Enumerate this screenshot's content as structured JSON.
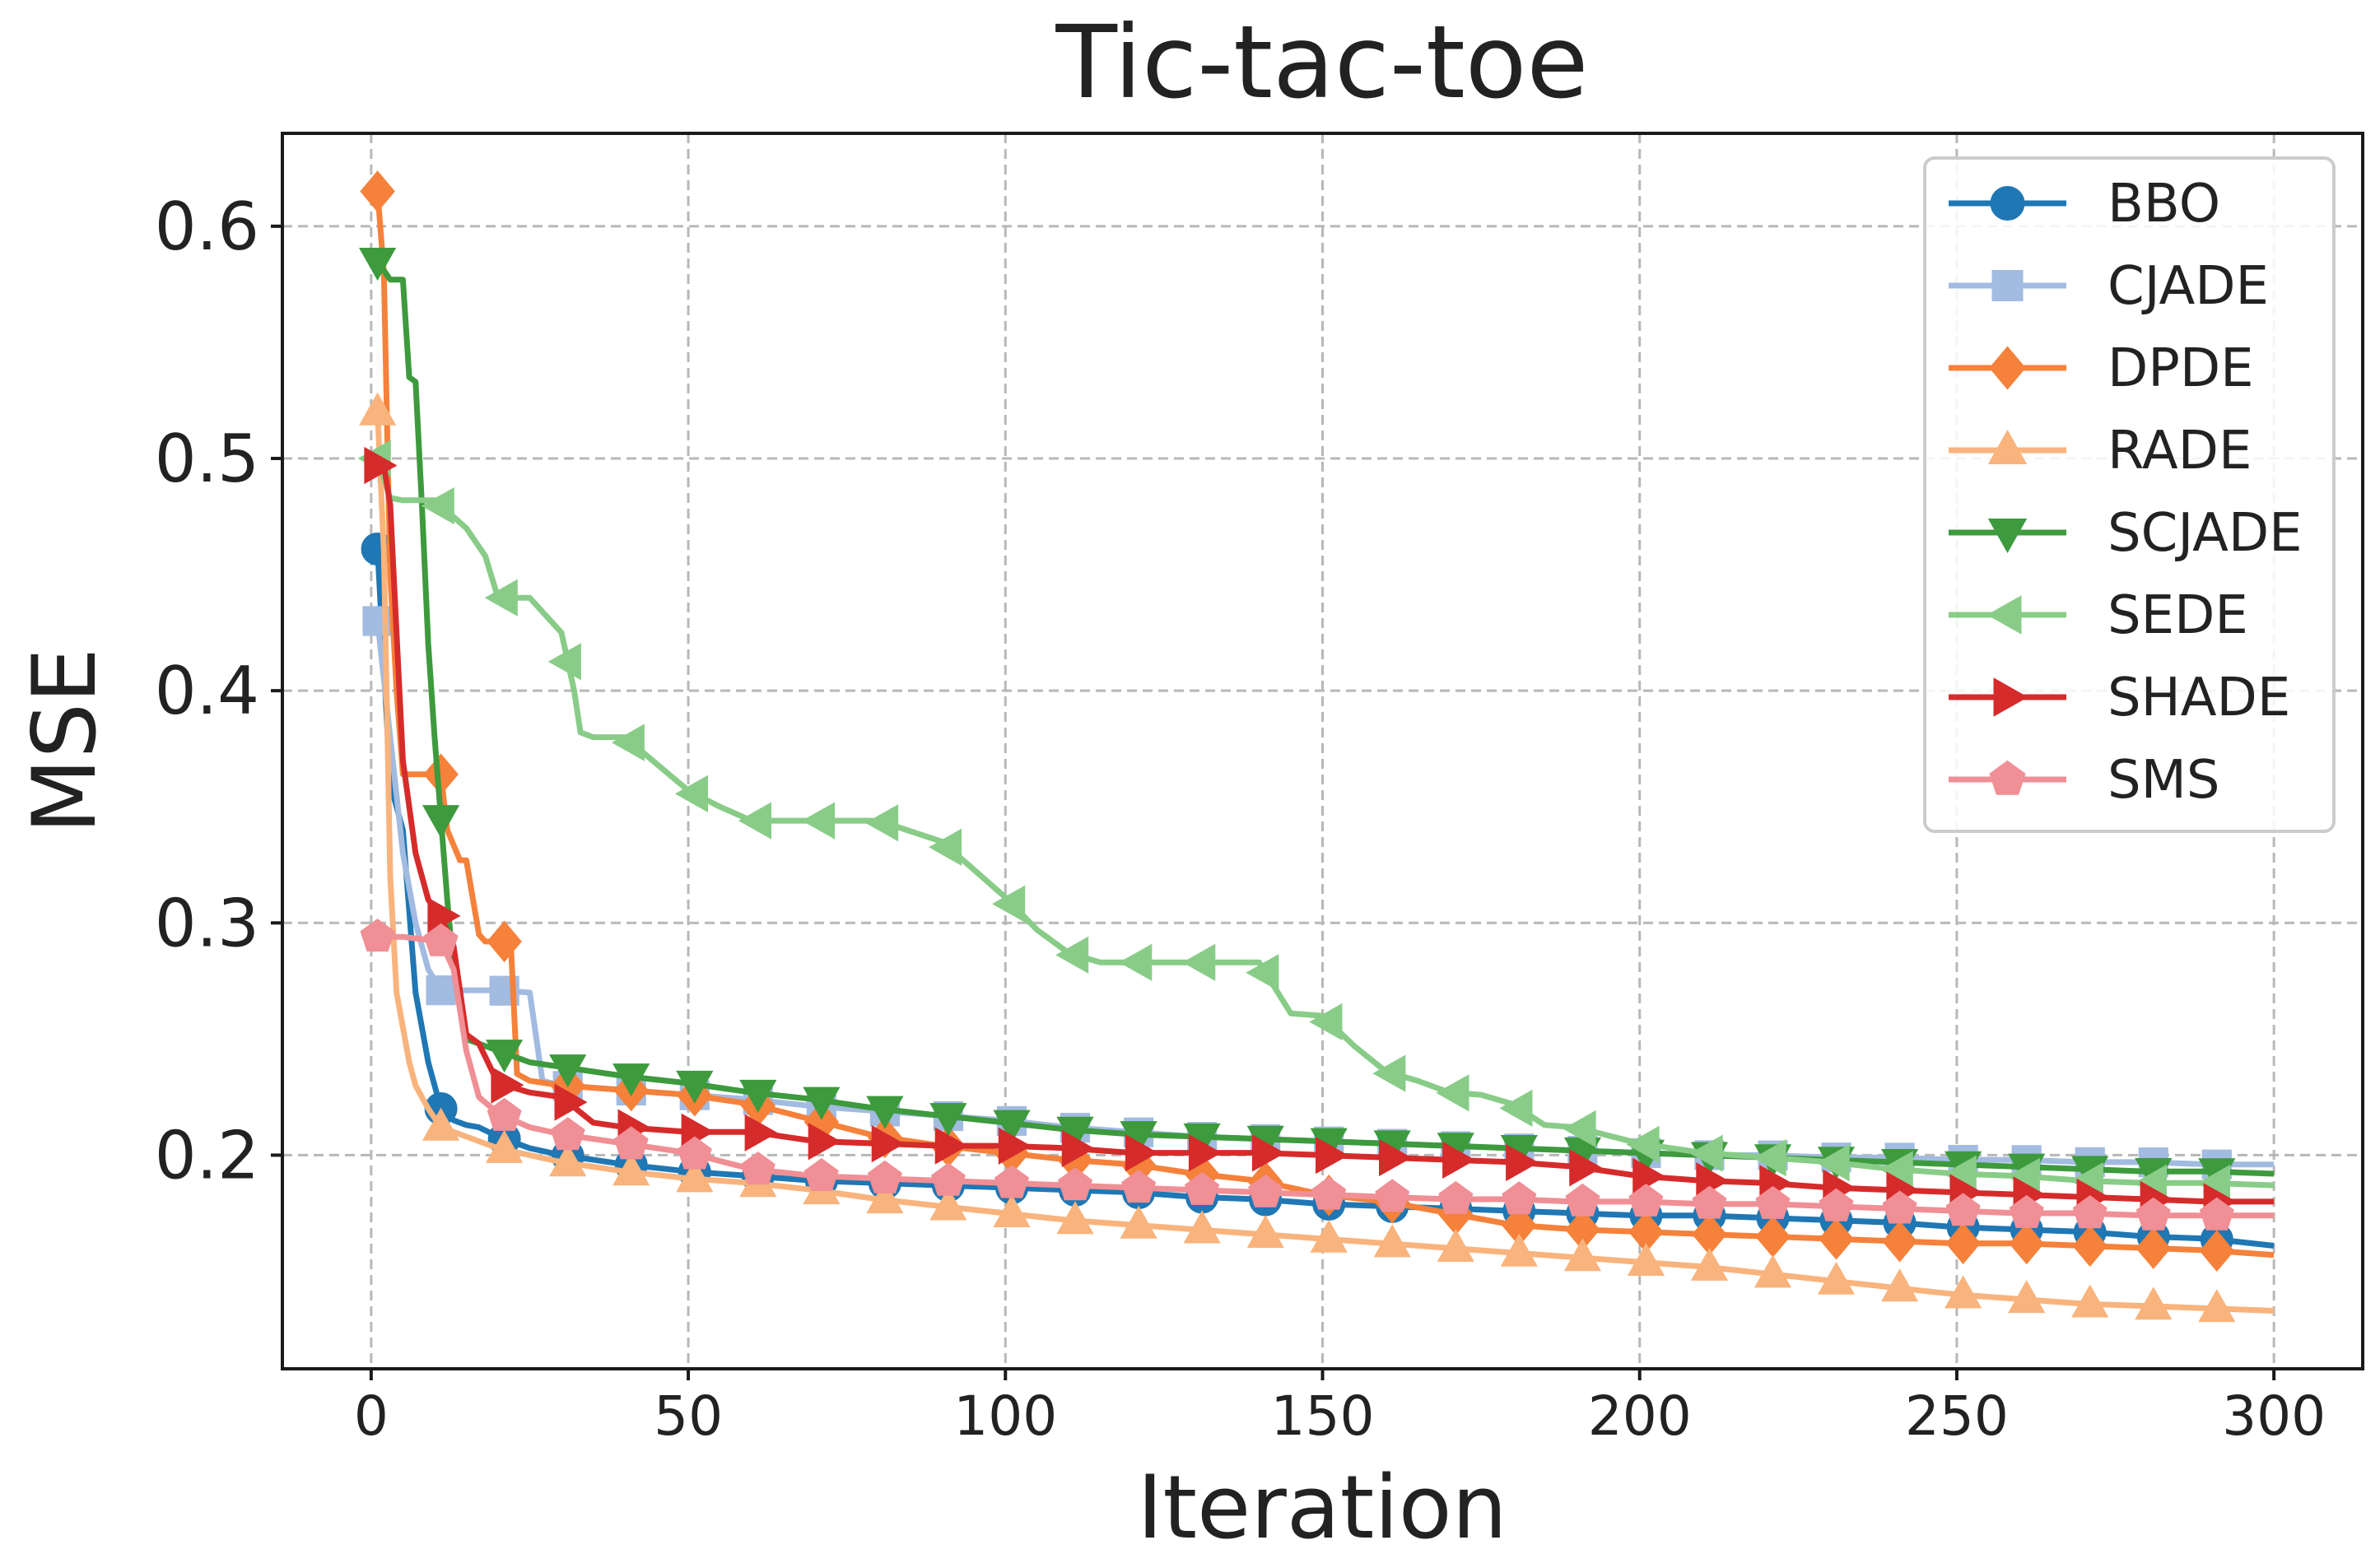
{
  "chart_data": {
    "type": "line",
    "title": "Tic-tac-toe",
    "xlabel": "Iteration",
    "ylabel": "MSE",
    "xlim": [
      -14,
      314
    ],
    "ylim": [
      0.108,
      0.64
    ],
    "xticks": [
      0,
      50,
      100,
      150,
      200,
      250,
      300
    ],
    "yticks": [
      0.2,
      0.3,
      0.4,
      0.5,
      0.6
    ],
    "xtick_labels": [
      "0",
      "50",
      "100",
      "150",
      "200",
      "250",
      "300"
    ],
    "ytick_labels": [
      "0.2",
      "0.3",
      "0.4",
      "0.5",
      "0.6"
    ],
    "grid": true,
    "legend_position": "top-right",
    "series": [
      {
        "name": "BBO",
        "color": "#1f77b4",
        "marker": "circle",
        "x": [
          1,
          3,
          5,
          7,
          9,
          11,
          13,
          15,
          17,
          20,
          25,
          30,
          40,
          50,
          60,
          70,
          80,
          90,
          100,
          110,
          120,
          130,
          140,
          150,
          160,
          170,
          180,
          190,
          200,
          210,
          220,
          230,
          240,
          250,
          260,
          270,
          280,
          290,
          300
        ],
        "y": [
          0.461,
          0.36,
          0.34,
          0.27,
          0.24,
          0.22,
          0.215,
          0.213,
          0.212,
          0.208,
          0.203,
          0.2,
          0.196,
          0.193,
          0.191,
          0.189,
          0.188,
          0.187,
          0.186,
          0.185,
          0.184,
          0.182,
          0.181,
          0.179,
          0.178,
          0.177,
          0.176,
          0.175,
          0.174,
          0.174,
          0.173,
          0.172,
          0.171,
          0.169,
          0.168,
          0.167,
          0.165,
          0.164,
          0.161
        ]
      },
      {
        "name": "CJADE",
        "color": "#a2bbe0",
        "marker": "square",
        "x": [
          1,
          3,
          5,
          7,
          9,
          11,
          15,
          20,
          25,
          27,
          30,
          40,
          50,
          60,
          70,
          80,
          90,
          100,
          110,
          120,
          130,
          140,
          150,
          160,
          170,
          180,
          190,
          200,
          210,
          220,
          230,
          240,
          250,
          260,
          270,
          280,
          290,
          300
        ],
        "y": [
          0.43,
          0.38,
          0.33,
          0.3,
          0.28,
          0.271,
          0.271,
          0.271,
          0.27,
          0.232,
          0.23,
          0.228,
          0.226,
          0.224,
          0.221,
          0.219,
          0.217,
          0.215,
          0.212,
          0.21,
          0.208,
          0.207,
          0.206,
          0.205,
          0.204,
          0.203,
          0.202,
          0.201,
          0.2,
          0.2,
          0.199,
          0.199,
          0.198,
          0.198,
          0.197,
          0.197,
          0.196,
          0.196
        ]
      },
      {
        "name": "DPDE",
        "color": "#f5813a",
        "marker": "diamond",
        "x": [
          1,
          2,
          3,
          4,
          5,
          8,
          11,
          12,
          14,
          15,
          17,
          18,
          20,
          22,
          23,
          25,
          30,
          40,
          50,
          60,
          70,
          80,
          90,
          100,
          110,
          120,
          130,
          140,
          150,
          160,
          170,
          180,
          190,
          200,
          210,
          220,
          230,
          240,
          250,
          260,
          270,
          280,
          290,
          300
        ],
        "y": [
          0.615,
          0.58,
          0.45,
          0.4,
          0.364,
          0.364,
          0.364,
          0.34,
          0.327,
          0.327,
          0.295,
          0.292,
          0.292,
          0.292,
          0.235,
          0.232,
          0.23,
          0.228,
          0.226,
          0.222,
          0.215,
          0.208,
          0.204,
          0.201,
          0.198,
          0.196,
          0.192,
          0.189,
          0.183,
          0.18,
          0.175,
          0.17,
          0.168,
          0.167,
          0.166,
          0.165,
          0.164,
          0.163,
          0.162,
          0.162,
          0.161,
          0.16,
          0.159,
          0.157
        ]
      },
      {
        "name": "RADE",
        "color": "#f9b37c",
        "marker": "triangle-up",
        "x": [
          1,
          2,
          3,
          4,
          5,
          6,
          7,
          9,
          11,
          15,
          20,
          30,
          40,
          50,
          60,
          70,
          80,
          90,
          100,
          110,
          120,
          130,
          140,
          150,
          160,
          170,
          180,
          190,
          200,
          210,
          220,
          230,
          240,
          250,
          260,
          270,
          280,
          290,
          300
        ],
        "y": [
          0.52,
          0.46,
          0.32,
          0.27,
          0.255,
          0.24,
          0.23,
          0.22,
          0.212,
          0.208,
          0.203,
          0.197,
          0.193,
          0.19,
          0.188,
          0.185,
          0.181,
          0.178,
          0.175,
          0.172,
          0.17,
          0.168,
          0.166,
          0.164,
          0.162,
          0.16,
          0.158,
          0.156,
          0.154,
          0.152,
          0.149,
          0.146,
          0.143,
          0.14,
          0.138,
          0.136,
          0.135,
          0.134,
          0.133
        ]
      },
      {
        "name": "SCJADE",
        "color": "#3d9a3d",
        "marker": "triangle-down",
        "x": [
          1,
          3,
          5,
          6,
          7,
          8,
          9,
          10,
          11,
          12,
          13,
          15,
          20,
          25,
          30,
          40,
          50,
          60,
          70,
          80,
          90,
          100,
          110,
          120,
          130,
          140,
          150,
          160,
          170,
          180,
          190,
          200,
          210,
          220,
          230,
          240,
          250,
          260,
          270,
          280,
          290,
          300
        ],
        "y": [
          0.585,
          0.577,
          0.577,
          0.535,
          0.533,
          0.48,
          0.42,
          0.38,
          0.345,
          0.31,
          0.28,
          0.25,
          0.245,
          0.24,
          0.238,
          0.234,
          0.231,
          0.227,
          0.224,
          0.22,
          0.217,
          0.214,
          0.211,
          0.209,
          0.208,
          0.207,
          0.206,
          0.205,
          0.204,
          0.203,
          0.202,
          0.201,
          0.2,
          0.199,
          0.198,
          0.197,
          0.196,
          0.195,
          0.194,
          0.193,
          0.193,
          0.192
        ]
      },
      {
        "name": "SEDE",
        "color": "#88cc88",
        "marker": "triangle-left",
        "x": [
          1,
          3,
          5,
          10,
          15,
          18,
          20,
          25,
          30,
          32,
          33,
          35,
          40,
          50,
          55,
          60,
          70,
          80,
          90,
          100,
          105,
          110,
          115,
          120,
          130,
          140,
          145,
          150,
          155,
          160,
          165,
          170,
          175,
          180,
          185,
          190,
          200,
          210,
          220,
          230,
          240,
          250,
          260,
          270,
          280,
          290,
          300
        ],
        "y": [
          0.5,
          0.483,
          0.482,
          0.482,
          0.47,
          0.458,
          0.44,
          0.44,
          0.425,
          0.4,
          0.382,
          0.38,
          0.38,
          0.357,
          0.35,
          0.344,
          0.344,
          0.344,
          0.335,
          0.311,
          0.297,
          0.287,
          0.283,
          0.283,
          0.283,
          0.283,
          0.261,
          0.26,
          0.247,
          0.236,
          0.232,
          0.227,
          0.226,
          0.222,
          0.213,
          0.212,
          0.205,
          0.201,
          0.199,
          0.197,
          0.194,
          0.192,
          0.191,
          0.189,
          0.188,
          0.188,
          0.187
        ]
      },
      {
        "name": "SHADE",
        "color": "#d62b2b",
        "marker": "triangle-right",
        "x": [
          1,
          2,
          3,
          5,
          7,
          9,
          11,
          13,
          15,
          17,
          20,
          25,
          30,
          35,
          40,
          50,
          60,
          70,
          80,
          90,
          100,
          110,
          120,
          130,
          140,
          150,
          160,
          170,
          180,
          190,
          200,
          210,
          220,
          230,
          240,
          250,
          260,
          270,
          280,
          290,
          300
        ],
        "y": [
          0.497,
          0.497,
          0.48,
          0.37,
          0.33,
          0.31,
          0.303,
          0.29,
          0.252,
          0.248,
          0.231,
          0.227,
          0.225,
          0.214,
          0.212,
          0.21,
          0.21,
          0.206,
          0.205,
          0.204,
          0.204,
          0.203,
          0.201,
          0.201,
          0.201,
          0.2,
          0.199,
          0.198,
          0.197,
          0.195,
          0.191,
          0.189,
          0.188,
          0.186,
          0.185,
          0.184,
          0.183,
          0.182,
          0.181,
          0.18,
          0.18
        ]
      },
      {
        "name": "SMS",
        "color": "#f08f95",
        "marker": "pentagon",
        "x": [
          1,
          5,
          8,
          11,
          13,
          15,
          17,
          20,
          25,
          30,
          40,
          50,
          60,
          70,
          80,
          90,
          100,
          110,
          120,
          130,
          140,
          150,
          160,
          170,
          180,
          190,
          200,
          210,
          220,
          230,
          240,
          250,
          260,
          270,
          280,
          290,
          300
        ],
        "y": [
          0.294,
          0.294,
          0.293,
          0.292,
          0.28,
          0.245,
          0.225,
          0.218,
          0.212,
          0.209,
          0.205,
          0.201,
          0.194,
          0.191,
          0.19,
          0.189,
          0.188,
          0.187,
          0.186,
          0.185,
          0.184,
          0.183,
          0.182,
          0.181,
          0.181,
          0.18,
          0.18,
          0.179,
          0.179,
          0.178,
          0.177,
          0.176,
          0.175,
          0.175,
          0.174,
          0.174,
          0.174
        ]
      }
    ]
  }
}
